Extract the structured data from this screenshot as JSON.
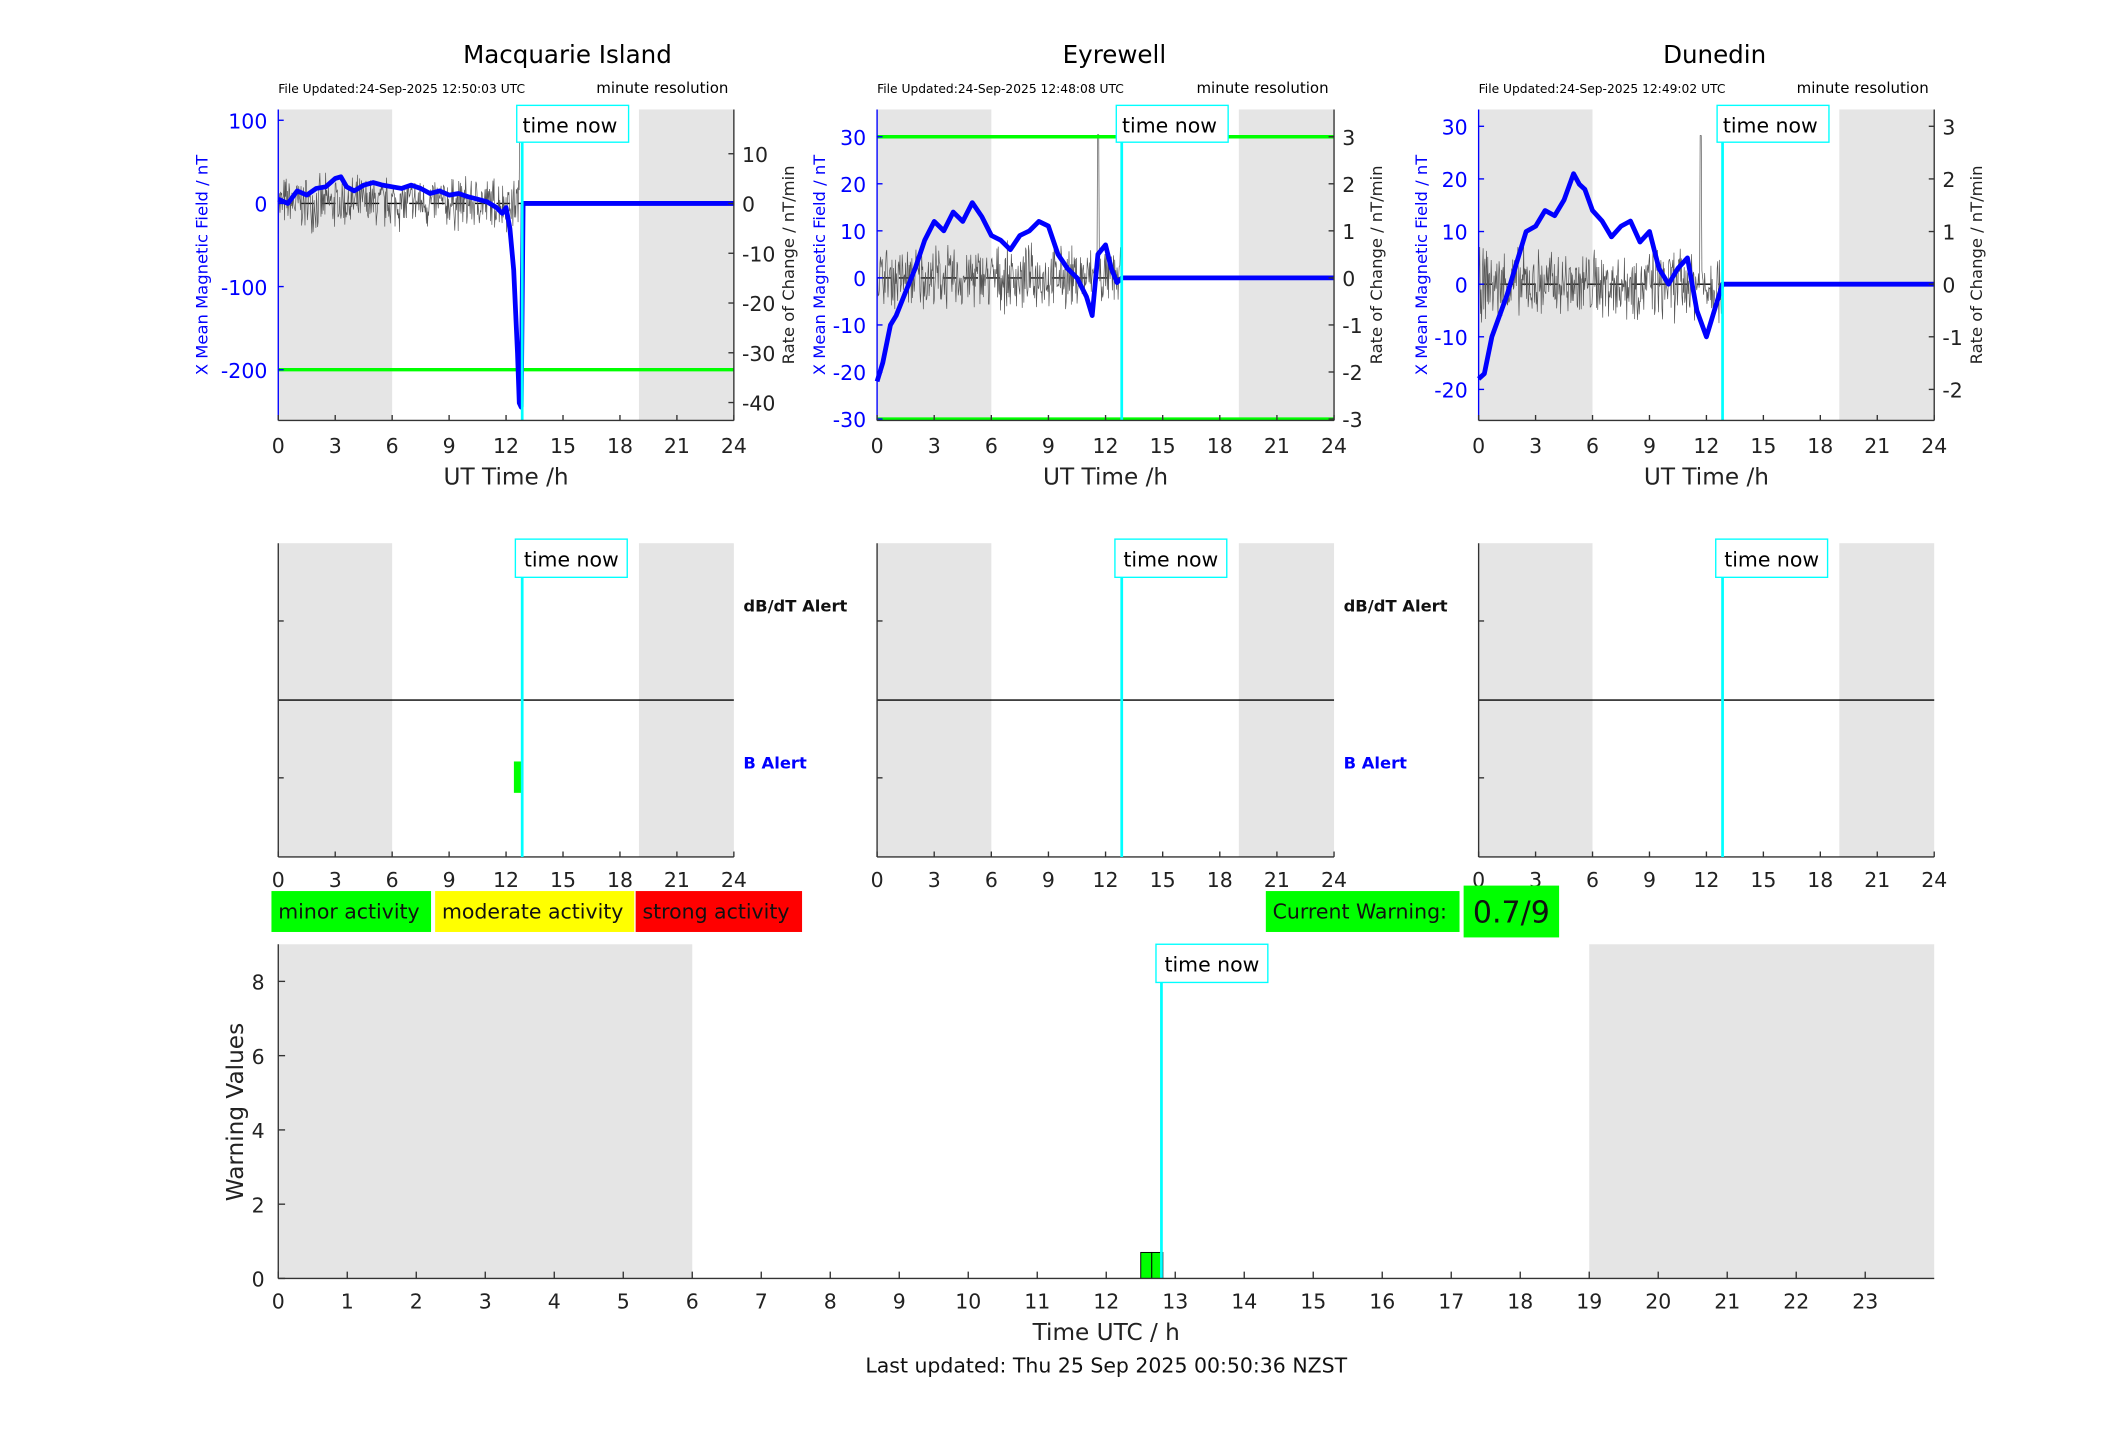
{
  "footer": {
    "last_updated": "Last updated: Thu 25 Sep 2025 00:50:36 NZST"
  },
  "legend": {
    "minor": "minor activity",
    "moderate": "moderate activity",
    "strong": "strong activity",
    "current_warning_label": "Current Warning:",
    "current_warning_value": "0.7/9",
    "colors": {
      "minor": "#00ff00",
      "moderate": "#ffff00",
      "strong": "#ff0000"
    }
  },
  "common": {
    "time_now": "time now",
    "time_now_hour": 12.85,
    "x_label": "UT Time /h",
    "x_ticks": [
      "0",
      "3",
      "6",
      "9",
      "12",
      "15",
      "18",
      "21",
      "24"
    ],
    "left_ylabel": "X Mean Magnetic Field / nT",
    "right_ylabel": "Rate of Change / nT/min",
    "resolution": "minute resolution",
    "dbdt_alert": "dB/dT Alert",
    "b_alert": "B Alert",
    "night_shading_hours": [
      [
        0,
        6
      ],
      [
        19,
        24
      ]
    ],
    "colors": {
      "trace": "#0000ff",
      "threshold": "#00ff00",
      "now": "#00ffff",
      "night": "#e5e5e5"
    }
  },
  "chart_data": [
    {
      "type": "line",
      "title": "Macquarie Island",
      "file_updated": "File Updated:24-Sep-2025 12:50:03 UTC",
      "xlim": [
        0,
        24
      ],
      "ylim": [
        -261,
        113
      ],
      "ylim_right": [
        -43.6,
        18.9
      ],
      "left_ticks": [
        "100",
        "0",
        "-100",
        "-200"
      ],
      "left_tick_values": [
        100,
        0,
        -100,
        -200
      ],
      "right_ticks": [
        "10",
        "0",
        "-10",
        "-20",
        "-30",
        "-40"
      ],
      "right_tick_values": [
        10,
        0,
        -10,
        -20,
        -30,
        -40
      ],
      "thresholds": [
        -200
      ],
      "noise_amplitude": 4,
      "noise_spike_hour": 12.75,
      "series": [
        {
          "name": "X Mean Magnetic Field",
          "x": [
            0,
            0.5,
            1,
            1.5,
            2,
            2.5,
            3,
            3.3,
            3.6,
            4,
            4.5,
            5,
            5.5,
            6,
            6.5,
            7,
            7.5,
            8,
            8.5,
            9,
            9.5,
            10,
            10.5,
            11,
            11.5,
            11.8,
            12,
            12.2,
            12.4,
            12.6,
            12.7,
            12.8,
            12.9,
            24
          ],
          "y": [
            5,
            0,
            15,
            10,
            18,
            20,
            30,
            32,
            20,
            15,
            22,
            25,
            22,
            20,
            18,
            22,
            18,
            12,
            15,
            10,
            12,
            8,
            5,
            2,
            -5,
            -12,
            -5,
            -30,
            -80,
            -180,
            -240,
            -245,
            0,
            0
          ]
        }
      ],
      "b_alert_bars": [
        {
          "hour": 12.7,
          "color": "#00ff00"
        }
      ]
    },
    {
      "type": "line",
      "title": "Eyrewell",
      "file_updated": "File Updated:24-Sep-2025 12:48:08 UTC",
      "xlim": [
        0,
        24
      ],
      "ylim": [
        -30.3,
        35.8
      ],
      "ylim_right": [
        -3.03,
        3.58
      ],
      "left_ticks": [
        "30",
        "20",
        "10",
        "0",
        "-10",
        "-20",
        "-30"
      ],
      "left_tick_values": [
        30,
        20,
        10,
        0,
        -10,
        -20,
        -30
      ],
      "right_ticks": [
        "3",
        "2",
        "1",
        "0",
        "-1",
        "-2",
        "-3"
      ],
      "right_tick_values": [
        3,
        2,
        1,
        0,
        -1,
        -2,
        -3
      ],
      "thresholds": [
        30,
        -30
      ],
      "noise_amplitude": 0.5,
      "noise_spike_hour": 11.6,
      "series": [
        {
          "name": "X Mean Magnetic Field",
          "x": [
            0,
            0.3,
            0.7,
            1,
            1.5,
            2,
            2.5,
            3,
            3.5,
            4,
            4.5,
            5,
            5.5,
            6,
            6.5,
            7,
            7.5,
            8,
            8.5,
            9,
            9.5,
            10,
            10.5,
            11,
            11.3,
            11.6,
            12,
            12.3,
            12.6,
            12.85,
            24
          ],
          "y": [
            -22,
            -18,
            -10,
            -8,
            -3,
            2,
            8,
            12,
            10,
            14,
            12,
            16,
            13,
            9,
            8,
            6,
            9,
            10,
            12,
            11,
            5,
            2,
            0,
            -4,
            -8,
            5,
            7,
            2,
            -1,
            0,
            0
          ]
        }
      ],
      "b_alert_bars": []
    },
    {
      "type": "line",
      "title": "Dunedin",
      "file_updated": "File Updated:24-Sep-2025 12:49:02 UTC",
      "xlim": [
        0,
        24
      ],
      "ylim": [
        -25.9,
        33.2
      ],
      "ylim_right": [
        -2.59,
        3.32
      ],
      "left_ticks": [
        "30",
        "20",
        "10",
        "0",
        "-10",
        "-20"
      ],
      "left_tick_values": [
        30,
        20,
        10,
        0,
        -10,
        -20
      ],
      "right_ticks": [
        "3",
        "2",
        "1",
        "0",
        "-1",
        "-2"
      ],
      "right_tick_values": [
        3,
        2,
        1,
        0,
        -1,
        -2
      ],
      "thresholds": [],
      "noise_amplitude": 0.5,
      "noise_spike_hour": 11.7,
      "series": [
        {
          "name": "X Mean Magnetic Field",
          "x": [
            0,
            0.3,
            0.7,
            1,
            1.5,
            2,
            2.5,
            3,
            3.5,
            4,
            4.5,
            5,
            5.3,
            5.6,
            6,
            6.5,
            7,
            7.5,
            8,
            8.5,
            9,
            9.5,
            10,
            10.5,
            11,
            11.5,
            12,
            12.5,
            12.85,
            24
          ],
          "y": [
            -18,
            -17,
            -10,
            -7,
            -2,
            4,
            10,
            11,
            14,
            13,
            16,
            21,
            19,
            18,
            14,
            12,
            9,
            11,
            12,
            8,
            10,
            3,
            0,
            3,
            5,
            -5,
            -10,
            -4,
            0,
            0
          ]
        }
      ],
      "b_alert_bars": []
    },
    {
      "type": "bar",
      "title": "",
      "xlabel": "Time UTC / h",
      "ylabel": "Warning Values",
      "xlim": [
        0,
        24
      ],
      "ylim": [
        0,
        9
      ],
      "x_ticks": [
        "0",
        "1",
        "2",
        "3",
        "4",
        "5",
        "6",
        "7",
        "8",
        "9",
        "10",
        "11",
        "12",
        "13",
        "14",
        "15",
        "16",
        "17",
        "18",
        "19",
        "20",
        "21",
        "22",
        "23"
      ],
      "y_ticks": [
        "0",
        "2",
        "4",
        "6",
        "8"
      ],
      "y_tick_values": [
        0,
        2,
        4,
        6,
        8
      ],
      "bars": [
        {
          "hour": 12.5,
          "value": 0.7,
          "color": "#00ff00"
        },
        {
          "hour": 12.66,
          "value": 0.7,
          "color": "#00ff00"
        }
      ]
    }
  ]
}
